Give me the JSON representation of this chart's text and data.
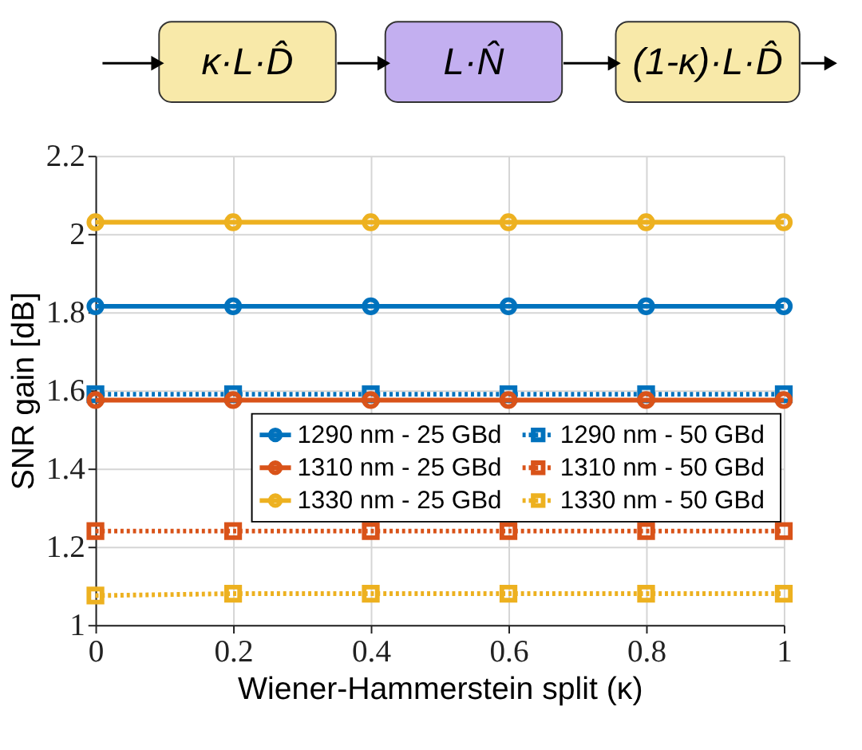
{
  "chart_data": {
    "type": "line",
    "annotations": [
      "κ·L·D̂",
      "L·N̂",
      "(1-κ)·L·D̂"
    ],
    "xlabel": "Wiener-Hammerstein split (κ)",
    "ylabel": "SNR gain [dB]",
    "x": [
      0,
      0.2,
      0.4,
      0.6,
      0.8,
      1
    ],
    "xlim": [
      0,
      1
    ],
    "xticks": [
      0,
      0.2,
      0.4,
      0.6,
      0.8,
      1
    ],
    "ylim": [
      1,
      2.2
    ],
    "yticks": [
      1,
      1.2,
      1.4,
      1.6,
      1.8,
      2,
      2.2
    ],
    "grid": true,
    "legend": "right",
    "series": [
      {
        "name": "1290 nm - 25 GBd",
        "color": "#0072bd",
        "marker": "circle",
        "line_style": "solid",
        "values": [
          1.815,
          1.815,
          1.815,
          1.815,
          1.815,
          1.815
        ]
      },
      {
        "name": "1290 nm - 50 GBd",
        "color": "#0072bd",
        "marker": "square",
        "line_style": "dotted",
        "values": [
          1.59,
          1.59,
          1.59,
          1.59,
          1.59,
          1.59
        ]
      },
      {
        "name": "1310 nm - 25 GBd",
        "color": "#d95319",
        "marker": "circle",
        "line_style": "solid",
        "values": [
          1.575,
          1.575,
          1.575,
          1.575,
          1.575,
          1.575
        ]
      },
      {
        "name": "1310 nm - 50 GBd",
        "color": "#d95319",
        "marker": "square",
        "line_style": "dotted",
        "values": [
          1.24,
          1.24,
          1.24,
          1.24,
          1.24,
          1.24
        ]
      },
      {
        "name": "1330 nm - 25 GBd",
        "color": "#edb120",
        "marker": "circle",
        "line_style": "solid",
        "values": [
          2.03,
          2.03,
          2.03,
          2.03,
          2.03,
          2.03
        ]
      },
      {
        "name": "1330 nm - 50 GBd",
        "color": "#edb120",
        "marker": "square",
        "line_style": "dotted",
        "values": [
          1.075,
          1.08,
          1.08,
          1.08,
          1.08,
          1.08
        ]
      }
    ]
  }
}
